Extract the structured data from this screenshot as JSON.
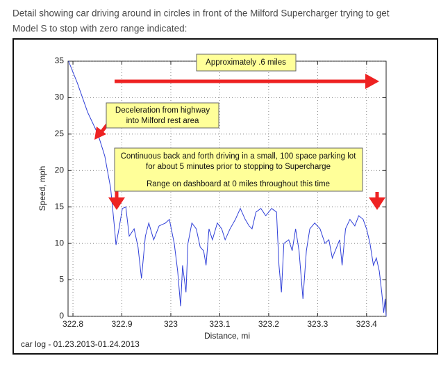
{
  "caption": [
    "Detail showing car driving around in circles in front of the Milford Supercharger trying to get",
    "Model S to stop with zero range indicated:"
  ],
  "footer": "car log - 01.23.2013-01.24.2013",
  "chart_data": {
    "type": "line",
    "x_label": "Distance, mi",
    "y_label": "Speed, mph",
    "xlim": [
      322.79,
      323.44
    ],
    "ylim": [
      0,
      35
    ],
    "xticks": [
      322.8,
      322.9,
      323,
      323.1,
      323.2,
      323.3,
      323.4
    ],
    "yticks": [
      0,
      5,
      10,
      15,
      20,
      25,
      30,
      35
    ],
    "grid": true,
    "annotations": [
      {
        "lines": [
          "Approximately .6 miles"
        ]
      },
      {
        "lines": [
          "Deceleration from highway",
          "into Milford rest area"
        ]
      },
      {
        "lines": [
          "Continuous back and forth driving in a small, 100 space parking lot",
          "for about 5 minutes prior to stopping to Supercharge",
          "Range on dashboard at 0 miles throughout this time"
        ]
      }
    ],
    "x": [
      322.791,
      322.809,
      322.83,
      322.851,
      322.865,
      322.877,
      322.884,
      322.888,
      322.894,
      322.901,
      322.908,
      322.915,
      322.925,
      322.933,
      322.94,
      322.948,
      322.955,
      322.965,
      322.976,
      322.989,
      322.997,
      323.007,
      323.014,
      323.02,
      323.024,
      323.031,
      323.035,
      323.043,
      323.052,
      323.06,
      323.067,
      323.072,
      323.078,
      323.085,
      323.095,
      323.104,
      323.111,
      323.121,
      323.132,
      323.142,
      323.152,
      323.16,
      323.166,
      323.174,
      323.184,
      323.194,
      323.206,
      323.216,
      323.221,
      323.226,
      323.231,
      323.241,
      323.248,
      323.255,
      323.262,
      323.27,
      323.277,
      323.284,
      323.294,
      323.305,
      323.315,
      323.323,
      323.33,
      323.336,
      323.345,
      323.35,
      323.357,
      323.366,
      323.376,
      323.384,
      323.393,
      323.4,
      323.407,
      323.414,
      323.42,
      323.426,
      323.431,
      323.435,
      323.438,
      323.44
    ],
    "series": [
      {
        "color": "#2f3fd8",
        "values": [
          35,
          32,
          28,
          25,
          22,
          17.6,
          12.8,
          9.8,
          12,
          14.8,
          15,
          11,
          12,
          9.5,
          5.2,
          11,
          12.8,
          10.5,
          12.4,
          12.8,
          13.3,
          10,
          6.2,
          1.4,
          7,
          3.3,
          10,
          12.8,
          12,
          9.5,
          9,
          7,
          12,
          10.5,
          12.8,
          12,
          10.5,
          12,
          13.3,
          14.8,
          13.3,
          12.4,
          12,
          14.3,
          14.8,
          13.8,
          14.8,
          14.3,
          7,
          3.3,
          10,
          10.5,
          9,
          12,
          9,
          2.4,
          9,
          12,
          12.8,
          12,
          10,
          10.5,
          8,
          9,
          10.5,
          7,
          12,
          13.3,
          12.4,
          13.8,
          13.3,
          12,
          10,
          7,
          8,
          6.2,
          3.3,
          0.5,
          2.4,
          0
        ]
      }
    ]
  }
}
